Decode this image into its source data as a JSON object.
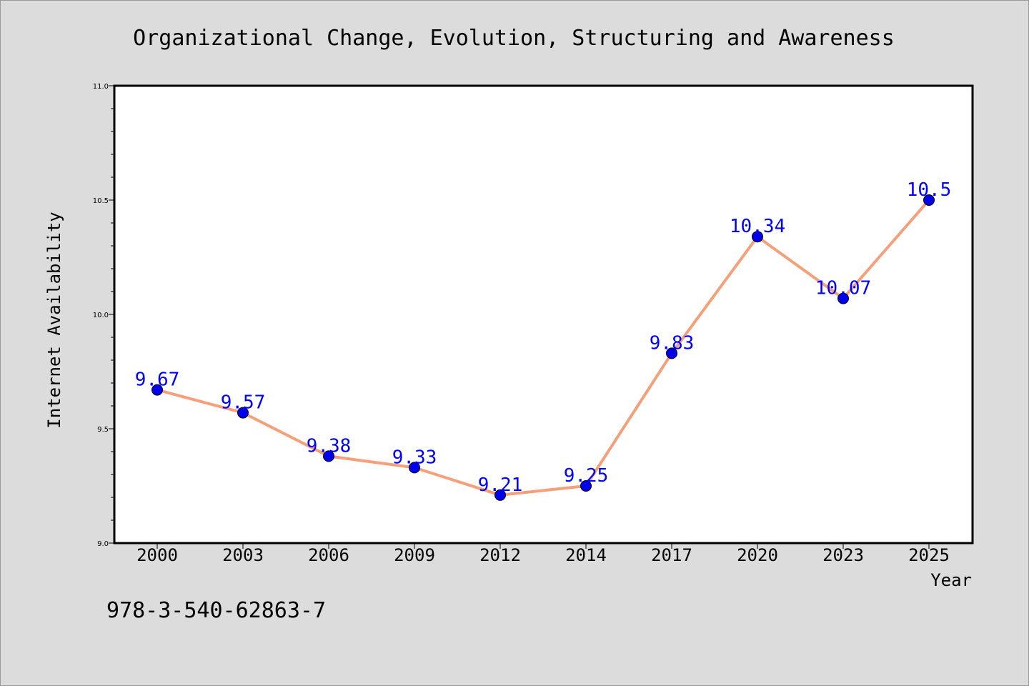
{
  "chart_data": {
    "type": "line",
    "title": "Organizational Change, Evolution, Structuring and Awareness",
    "xlabel": "Year",
    "ylabel": "Internet Availability",
    "categories": [
      "2000",
      "2003",
      "2006",
      "2009",
      "2012",
      "2014",
      "2017",
      "2020",
      "2023",
      "2025"
    ],
    "values": [
      9.67,
      9.57,
      9.38,
      9.33,
      9.21,
      9.25,
      9.83,
      10.34,
      10.07,
      10.5
    ],
    "data_labels": [
      "9.67",
      "9.57",
      "9.38",
      "9.33",
      "9.21",
      "9.25",
      "9.83",
      "10.34",
      "10.07",
      "10.5"
    ],
    "ylim": [
      9.0,
      11.0
    ],
    "yticks": [
      "9.0",
      "9.5",
      "10.0",
      "10.5",
      "11.0"
    ],
    "grid": false,
    "legend": "none",
    "line_color": "#f4a07a",
    "marker_color": "#0000ee",
    "label_color": "#0000ff"
  },
  "footer": "978-3-540-62863-7"
}
